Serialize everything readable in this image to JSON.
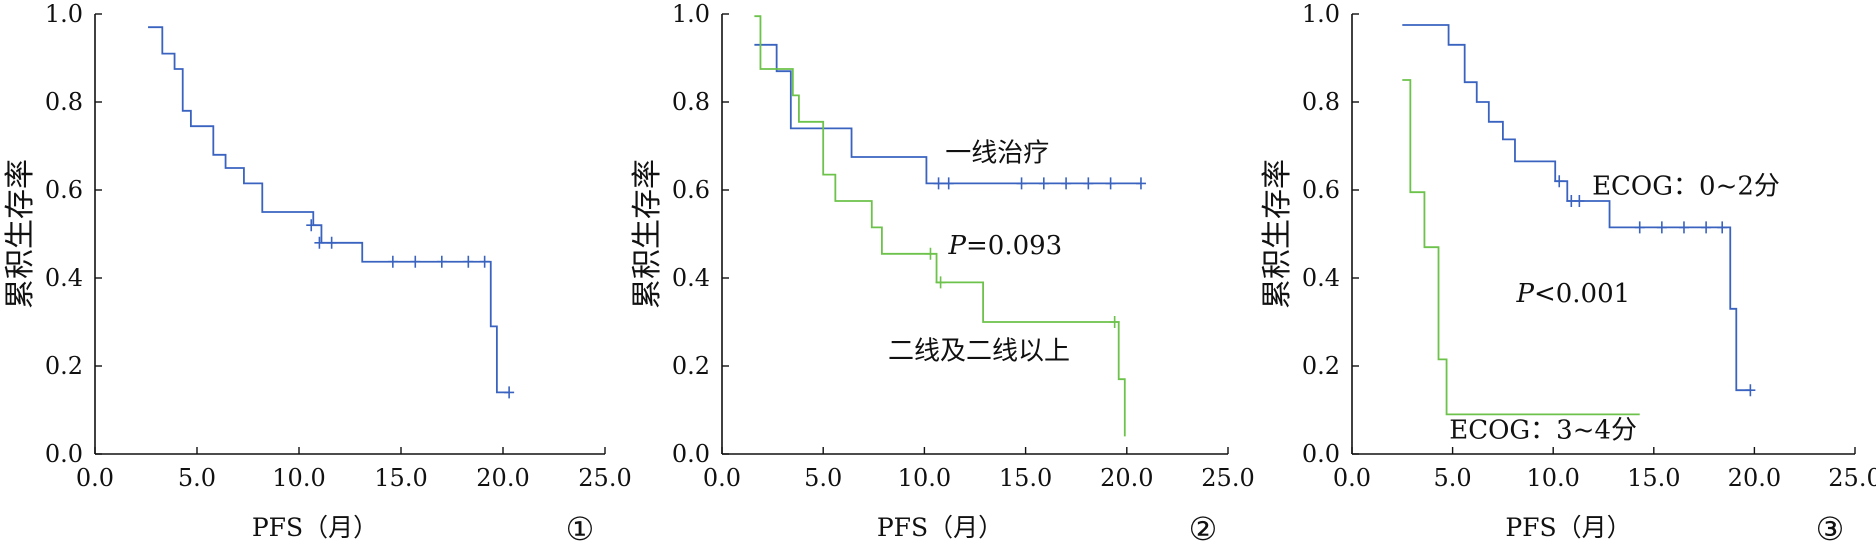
{
  "colors": {
    "blue": "#3a63c0",
    "green": "#6cc24a",
    "axis": "#111111",
    "text": "#111111"
  },
  "chart_data": [
    {
      "type": "line",
      "panel_label": "①",
      "xlabel": "PFS（月）",
      "ylabel": "累积生存率",
      "xlim": [
        0,
        25
      ],
      "ylim": [
        0,
        1
      ],
      "xticks": [
        "0.0",
        "5.0",
        "10.0",
        "15.0",
        "20.0",
        "25.0"
      ],
      "yticks": [
        "0.0",
        "0.2",
        "0.4",
        "0.6",
        "0.8",
        "1.0"
      ],
      "annotations": [],
      "series": [
        {
          "color": "blue",
          "steps": [
            [
              2.6,
              0.97
            ],
            [
              3.3,
              0.91
            ],
            [
              3.9,
              0.875
            ],
            [
              4.3,
              0.78
            ],
            [
              4.7,
              0.745
            ],
            [
              5.8,
              0.68
            ],
            [
              6.4,
              0.65
            ],
            [
              7.3,
              0.615
            ],
            [
              8.2,
              0.55
            ],
            [
              10.7,
              0.52
            ],
            [
              11.1,
              0.48
            ],
            [
              13.1,
              0.437
            ],
            [
              19.4,
              0.29
            ],
            [
              19.7,
              0.14
            ],
            [
              20.3,
              0.14
            ]
          ],
          "censors": [
            [
              10.6,
              0.52
            ],
            [
              11.0,
              0.48
            ],
            [
              11.6,
              0.48
            ],
            [
              14.6,
              0.437
            ],
            [
              15.7,
              0.437
            ],
            [
              17.0,
              0.437
            ],
            [
              18.3,
              0.437
            ],
            [
              19.1,
              0.437
            ],
            [
              20.3,
              0.14
            ]
          ]
        }
      ]
    },
    {
      "type": "line",
      "panel_label": "②",
      "xlabel": "PFS（月）",
      "ylabel": "累积生存率",
      "xlim": [
        0,
        25
      ],
      "ylim": [
        0,
        1
      ],
      "xticks": [
        "0.0",
        "5.0",
        "10.0",
        "15.0",
        "20.0",
        "25.0"
      ],
      "yticks": [
        "0.0",
        "0.2",
        "0.4",
        "0.6",
        "0.8",
        "1.0"
      ],
      "annotations": [
        {
          "text": "一线治疗",
          "x": 13.6,
          "y": 0.665
        },
        {
          "text_italic": "P",
          "text": "=0.093",
          "x": 14.0,
          "y": 0.455
        },
        {
          "text": "二线及二线以上",
          "x": 12.7,
          "y": 0.215
        }
      ],
      "series": [
        {
          "name": "一线治疗",
          "color": "blue",
          "steps": [
            [
              1.6,
              0.93
            ],
            [
              2.7,
              0.87
            ],
            [
              3.4,
              0.74
            ],
            [
              6.4,
              0.675
            ],
            [
              10.1,
              0.615
            ],
            [
              20.7,
              0.615
            ]
          ],
          "censors": [
            [
              10.7,
              0.615
            ],
            [
              11.2,
              0.615
            ],
            [
              14.8,
              0.615
            ],
            [
              15.9,
              0.615
            ],
            [
              17.0,
              0.615
            ],
            [
              18.1,
              0.615
            ],
            [
              19.2,
              0.615
            ],
            [
              20.7,
              0.615
            ]
          ]
        },
        {
          "name": "二线及二线以上",
          "color": "green",
          "steps": [
            [
              1.6,
              0.995
            ],
            [
              1.9,
              0.875
            ],
            [
              3.5,
              0.815
            ],
            [
              3.8,
              0.755
            ],
            [
              5.0,
              0.635
            ],
            [
              5.6,
              0.575
            ],
            [
              7.4,
              0.515
            ],
            [
              7.9,
              0.455
            ],
            [
              10.6,
              0.39
            ],
            [
              12.9,
              0.3
            ],
            [
              19.6,
              0.17
            ],
            [
              19.9,
              0.04
            ]
          ],
          "censors": [
            [
              10.3,
              0.455
            ],
            [
              10.8,
              0.39
            ],
            [
              19.4,
              0.3
            ]
          ]
        }
      ]
    },
    {
      "type": "line",
      "panel_label": "③",
      "xlabel": "PFS（月）",
      "ylabel": "累积生存率",
      "xlim": [
        0,
        25
      ],
      "ylim": [
        0,
        1
      ],
      "xticks": [
        "0.0",
        "5.0",
        "10.0",
        "15.0",
        "20.0",
        "25.0"
      ],
      "yticks": [
        "0.0",
        "0.2",
        "0.4",
        "0.6",
        "0.8",
        "1.0"
      ],
      "annotations": [
        {
          "text": "ECOG：0~2分",
          "x": 16.6,
          "y": 0.59
        },
        {
          "text_italic": "P",
          "text": "<0.001",
          "x": 11.0,
          "y": 0.345
        },
        {
          "text": "ECOG：3~4分",
          "x": 9.5,
          "y": 0.035
        }
      ],
      "series": [
        {
          "name": "ECOG：0~2分",
          "color": "blue",
          "steps": [
            [
              2.5,
              0.975
            ],
            [
              4.8,
              0.93
            ],
            [
              5.6,
              0.845
            ],
            [
              6.2,
              0.8
            ],
            [
              6.8,
              0.755
            ],
            [
              7.5,
              0.715
            ],
            [
              8.1,
              0.665
            ],
            [
              10.1,
              0.62
            ],
            [
              10.7,
              0.575
            ],
            [
              12.8,
              0.515
            ],
            [
              18.8,
              0.33
            ],
            [
              19.1,
              0.145
            ],
            [
              19.8,
              0.145
            ]
          ],
          "censors": [
            [
              10.3,
              0.62
            ],
            [
              10.9,
              0.575
            ],
            [
              11.3,
              0.575
            ],
            [
              14.3,
              0.515
            ],
            [
              15.4,
              0.515
            ],
            [
              16.5,
              0.515
            ],
            [
              17.6,
              0.515
            ],
            [
              18.4,
              0.515
            ],
            [
              19.8,
              0.145
            ]
          ]
        },
        {
          "name": "ECOG：3~4分",
          "color": "green",
          "steps": [
            [
              2.5,
              0.85
            ],
            [
              2.9,
              0.595
            ],
            [
              3.6,
              0.47
            ],
            [
              4.3,
              0.215
            ],
            [
              4.7,
              0.09
            ],
            [
              14.3,
              0.09
            ]
          ],
          "censors": []
        }
      ]
    }
  ]
}
